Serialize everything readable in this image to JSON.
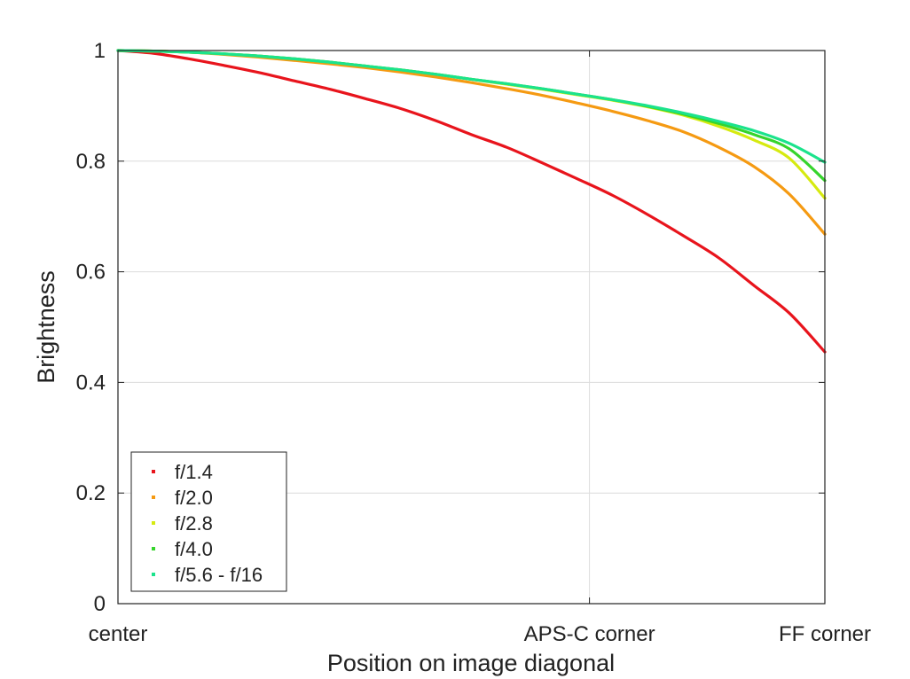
{
  "chart_data": {
    "type": "line",
    "title": "",
    "xlabel": "Position on image diagonal",
    "ylabel": "Brightness",
    "xlim": [
      0,
      1
    ],
    "ylim": [
      0,
      1
    ],
    "grid": true,
    "legend_position": "bottom-left",
    "x_ticks": [
      {
        "value": 0,
        "label": "center"
      },
      {
        "value": 0.667,
        "label": "APS-C corner"
      },
      {
        "value": 1,
        "label": "FF corner"
      }
    ],
    "y_ticks": [
      {
        "value": 0,
        "label": "0"
      },
      {
        "value": 0.2,
        "label": "0.2"
      },
      {
        "value": 0.4,
        "label": "0.4"
      },
      {
        "value": 0.6,
        "label": "0.6"
      },
      {
        "value": 0.8,
        "label": "0.8"
      },
      {
        "value": 1,
        "label": "1"
      }
    ],
    "x": [
      0,
      0.05,
      0.1,
      0.15,
      0.2,
      0.25,
      0.3,
      0.35,
      0.4,
      0.45,
      0.5,
      0.55,
      0.6,
      0.65,
      0.7,
      0.75,
      0.8,
      0.85,
      0.9,
      0.95,
      1.0
    ],
    "series": [
      {
        "name": "f/1.4",
        "color": "#e8141c",
        "values": [
          1.0,
          0.995,
          0.985,
          0.973,
          0.96,
          0.945,
          0.93,
          0.913,
          0.895,
          0.873,
          0.848,
          0.825,
          0.797,
          0.768,
          0.738,
          0.703,
          0.665,
          0.625,
          0.575,
          0.525,
          0.455
        ]
      },
      {
        "name": "f/2.0",
        "color": "#f59a12",
        "values": [
          1.0,
          0.999,
          0.997,
          0.993,
          0.988,
          0.982,
          0.976,
          0.969,
          0.961,
          0.952,
          0.942,
          0.931,
          0.919,
          0.905,
          0.89,
          0.873,
          0.853,
          0.825,
          0.79,
          0.74,
          0.668
        ]
      },
      {
        "name": "f/2.8",
        "color": "#d6ea10",
        "values": [
          1.0,
          0.999,
          0.997,
          0.994,
          0.99,
          0.985,
          0.979,
          0.972,
          0.965,
          0.957,
          0.948,
          0.939,
          0.93,
          0.92,
          0.91,
          0.898,
          0.883,
          0.863,
          0.838,
          0.805,
          0.733
        ]
      },
      {
        "name": "f/4.0",
        "color": "#36d42c",
        "values": [
          1.0,
          0.999,
          0.997,
          0.994,
          0.99,
          0.985,
          0.979,
          0.972,
          0.965,
          0.957,
          0.948,
          0.94,
          0.931,
          0.921,
          0.911,
          0.899,
          0.885,
          0.868,
          0.848,
          0.822,
          0.765
        ]
      },
      {
        "name": "f/5.6 - f/16",
        "color": "#1be38c",
        "values": [
          1.0,
          0.999,
          0.997,
          0.994,
          0.99,
          0.985,
          0.979,
          0.972,
          0.965,
          0.957,
          0.948,
          0.94,
          0.931,
          0.921,
          0.911,
          0.9,
          0.887,
          0.872,
          0.855,
          0.832,
          0.798
        ]
      }
    ]
  }
}
